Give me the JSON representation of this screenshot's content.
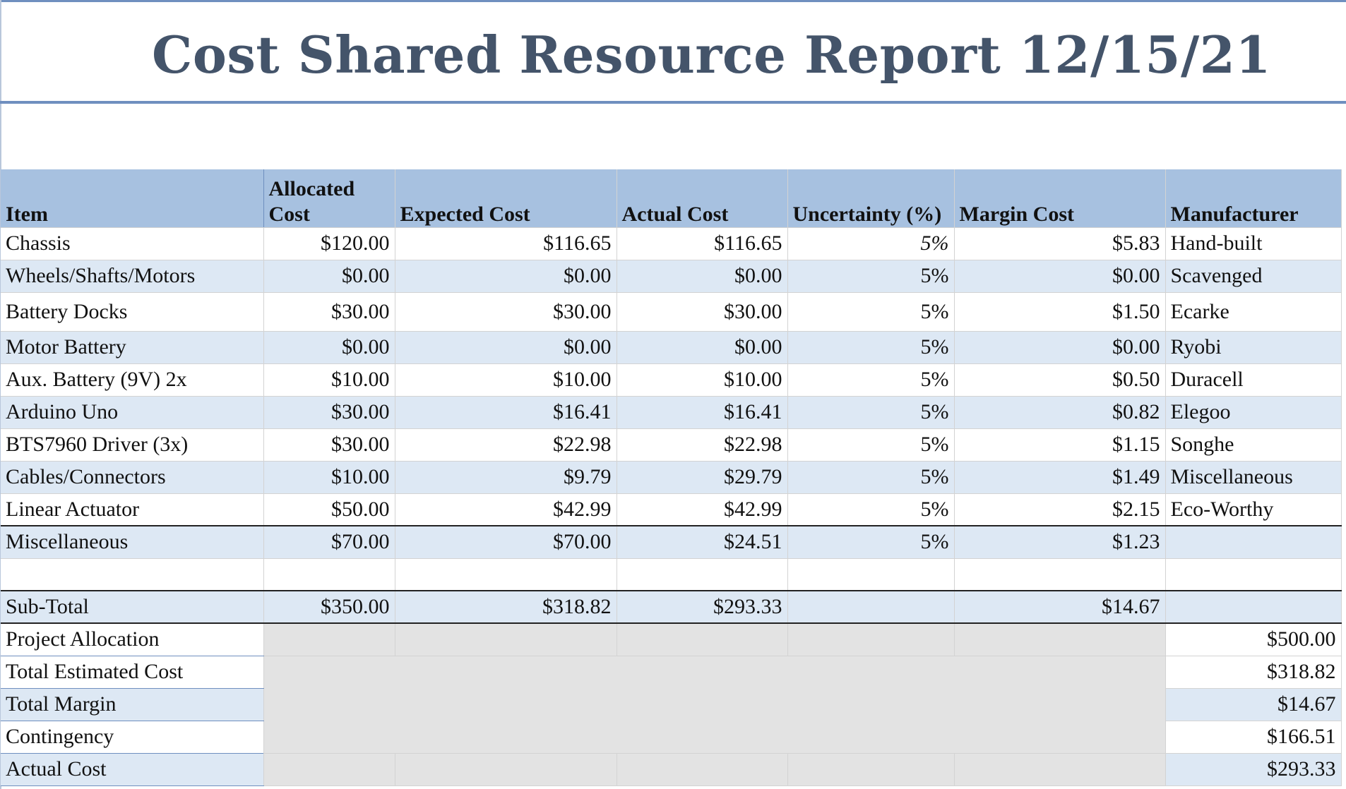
{
  "title": "Cost Shared Resource Report 12/15/21",
  "headers": {
    "item": "Item",
    "allocated_line1": "Allocated",
    "allocated_line2": "Cost",
    "expected": "Expected Cost",
    "actual": "Actual Cost",
    "uncertainty": "Uncertainty (%)",
    "margin": "Margin Cost",
    "manufacturer": "Manufacturer"
  },
  "rows": [
    {
      "item": "Chassis",
      "allocated": "$120.00",
      "expected": "$116.65",
      "actual": "$116.65",
      "uncertainty": "5%",
      "margin": "$5.83",
      "manufacturer": "Hand-built"
    },
    {
      "item": "Wheels/Shafts/Motors",
      "allocated": "$0.00",
      "expected": "$0.00",
      "actual": "$0.00",
      "uncertainty": "5%",
      "margin": "$0.00",
      "manufacturer": "Scavenged"
    },
    {
      "item": "Battery Docks",
      "allocated": "$30.00",
      "expected": "$30.00",
      "actual": "$30.00",
      "uncertainty": "5%",
      "margin": "$1.50",
      "manufacturer": "Ecarke"
    },
    {
      "item": "Motor Battery",
      "allocated": "$0.00",
      "expected": "$0.00",
      "actual": "$0.00",
      "uncertainty": "5%",
      "margin": "$0.00",
      "manufacturer": "Ryobi"
    },
    {
      "item": "Aux. Battery (9V) 2x",
      "allocated": "$10.00",
      "expected": "$10.00",
      "actual": "$10.00",
      "uncertainty": "5%",
      "margin": "$0.50",
      "manufacturer": "Duracell"
    },
    {
      "item": "Arduino Uno",
      "allocated": "$30.00",
      "expected": "$16.41",
      "actual": "$16.41",
      "uncertainty": "5%",
      "margin": "$0.82",
      "manufacturer": "Elegoo"
    },
    {
      "item": "BTS7960 Driver (3x)",
      "allocated": "$30.00",
      "expected": "$22.98",
      "actual": "$22.98",
      "uncertainty": "5%",
      "margin": "$1.15",
      "manufacturer": "Songhe"
    },
    {
      "item": "Cables/Connectors",
      "allocated": "$10.00",
      "expected": "$9.79",
      "actual": "$29.79",
      "uncertainty": "5%",
      "margin": "$1.49",
      "manufacturer": "Miscellaneous"
    },
    {
      "item": "Linear Actuator",
      "allocated": "$50.00",
      "expected": "$42.99",
      "actual": "$42.99",
      "uncertainty": "5%",
      "margin": "$2.15",
      "manufacturer": "Eco-Worthy"
    },
    {
      "item": "Miscellaneous",
      "allocated": "$70.00",
      "expected": "$70.00",
      "actual": "$24.51",
      "uncertainty": "5%",
      "margin": "$1.23",
      "manufacturer": ""
    }
  ],
  "subtotal": {
    "label": "Sub-Total",
    "allocated": "$350.00",
    "expected": "$318.82",
    "actual": "$293.33",
    "margin": "$14.67"
  },
  "summary": [
    {
      "label": "Project Allocation",
      "value": "$500.00"
    },
    {
      "label": "Total Estimated Cost",
      "value": "$318.82"
    },
    {
      "label": "Total Margin",
      "value": "$14.67"
    },
    {
      "label": "Contingency",
      "value": "$166.51"
    },
    {
      "label": "Actual Cost",
      "value": "$293.33"
    }
  ],
  "colors": {
    "title": "#44546a",
    "header_fill": "#a7c1e0",
    "band_fill": "#dde8f4",
    "rule": "#6f8fbf",
    "grey_fill": "#e3e3e3"
  }
}
